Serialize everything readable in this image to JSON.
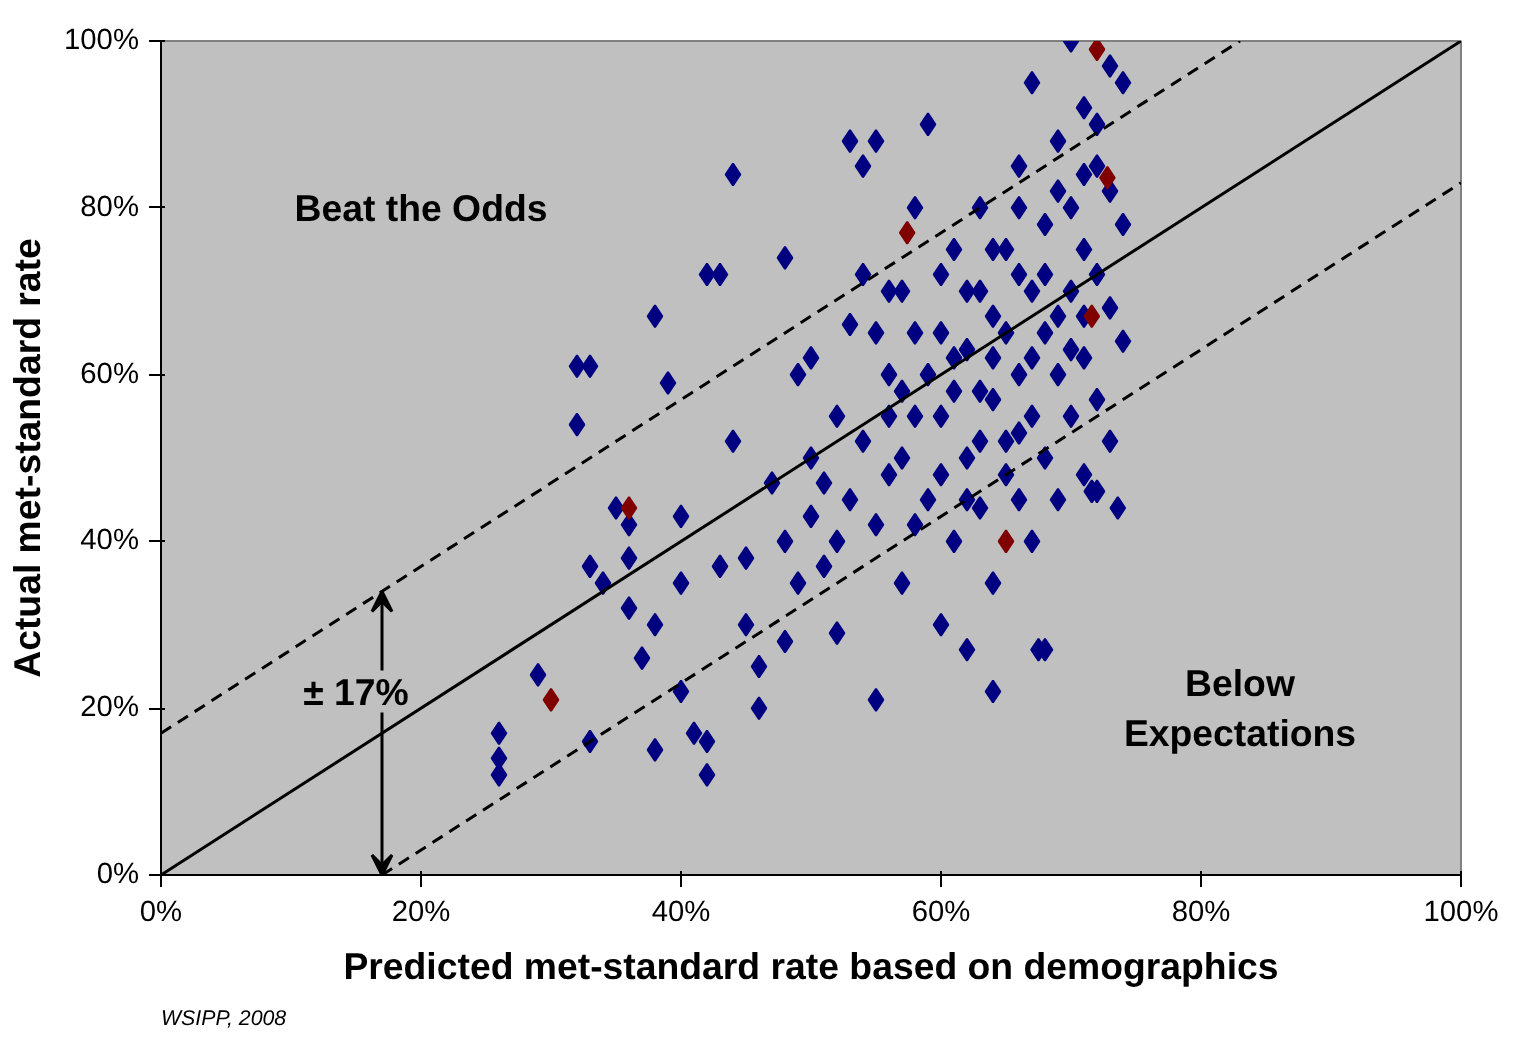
{
  "chart_data": {
    "type": "scatter",
    "xlabel": "Predicted met-standard rate based on demographics",
    "ylabel": "Actual met-standard rate",
    "annotations": [
      "Beat the Odds",
      "Below Expectations",
      "± 17%",
      "WSIPP, 2008"
    ],
    "xlim": [
      0,
      100
    ],
    "ylim": [
      0,
      100
    ],
    "xticks": [
      {
        "value": 0,
        "label": "0%"
      },
      {
        "value": 20,
        "label": "20%"
      },
      {
        "value": 40,
        "label": "40%"
      },
      {
        "value": 60,
        "label": "60%"
      },
      {
        "value": 80,
        "label": "80%"
      },
      {
        "value": 100,
        "label": "100%"
      }
    ],
    "yticks": [
      {
        "value": 0,
        "label": "0%"
      },
      {
        "value": 20,
        "label": "20%"
      },
      {
        "value": 40,
        "label": "40%"
      },
      {
        "value": 60,
        "label": "60%"
      },
      {
        "value": 80,
        "label": "80%"
      },
      {
        "value": 100,
        "label": "100%"
      }
    ],
    "grid": false,
    "marker": "diamond",
    "series": [
      {
        "color": "#000080",
        "x": [
          26,
          26,
          26,
          29,
          32,
          33,
          32,
          33,
          33,
          34,
          35,
          36,
          36,
          36,
          37,
          38,
          38,
          38,
          39,
          40,
          40,
          40,
          41,
          42,
          42,
          42,
          43,
          43,
          44,
          44,
          45,
          45,
          46,
          46,
          47,
          48,
          48,
          48,
          49,
          49,
          50,
          50,
          50,
          51,
          52,
          52,
          53,
          53,
          54,
          54,
          55,
          55,
          55,
          56,
          56,
          57,
          57,
          58,
          58,
          59,
          59,
          60,
          60,
          60,
          61,
          61,
          61,
          62,
          62,
          62,
          63,
          63,
          63,
          64,
          64,
          64,
          65,
          65,
          64,
          66,
          66,
          66,
          67,
          67,
          67,
          67,
          68,
          68,
          68,
          68,
          69,
          69,
          69,
          70,
          70,
          70,
          70,
          71,
          71,
          71,
          71,
          72,
          72,
          72,
          72,
          72,
          73,
          73,
          73,
          73,
          74,
          74,
          73.6,
          74,
          58,
          59,
          60,
          57,
          56,
          63,
          65,
          66,
          64,
          61,
          62,
          67,
          69,
          68,
          70,
          66,
          60,
          58,
          54,
          53,
          52,
          51,
          55,
          56,
          57,
          62,
          65,
          64,
          66,
          69,
          71,
          71,
          63,
          71.6,
          67.5
        ],
        "values": [
          17,
          14,
          12,
          24,
          61,
          61,
          54,
          37,
          16,
          35,
          44,
          42,
          38,
          32,
          26,
          30,
          15,
          67,
          59,
          43,
          35,
          22,
          17,
          16,
          12,
          72,
          72,
          37,
          84,
          52,
          38,
          30,
          25,
          20,
          47,
          74,
          40,
          28,
          35,
          60,
          50,
          43,
          62,
          37,
          55,
          29,
          88,
          66,
          85,
          72,
          88,
          42,
          21,
          60,
          48,
          70,
          35,
          55,
          80,
          90,
          45,
          65,
          30,
          55,
          75,
          40,
          62,
          50,
          70,
          27,
          80,
          58,
          44,
          67,
          35,
          62,
          75,
          52,
          22,
          85,
          60,
          45,
          70,
          55,
          95,
          40,
          78,
          65,
          50,
          27,
          88,
          60,
          45,
          100,
          80,
          70,
          55,
          92,
          75,
          62,
          48,
          90,
          85,
          72,
          57,
          46,
          97,
          82,
          68,
          52,
          95,
          78,
          44,
          64,
          65,
          60,
          72,
          50,
          55,
          70,
          65,
          72,
          57,
          58,
          63,
          62,
          67,
          72,
          63,
          53,
          48,
          42,
          52,
          45,
          40,
          47,
          65,
          70,
          58,
          45,
          48,
          75,
          80,
          82,
          84,
          67,
          52,
          46,
          27
        ]
      },
      {
        "color": "#800000",
        "x": [
          30,
          36,
          57.4,
          65,
          71.6,
          72.8,
          72
        ],
        "values": [
          21,
          44,
          77,
          40,
          67,
          83.6,
          99
        ]
      },
      {
        "type": "line",
        "color": "#000000",
        "line_style": "solid",
        "marker": "none",
        "x": [
          0,
          100
        ],
        "values": [
          0,
          100
        ]
      },
      {
        "type": "line",
        "color": "#000000",
        "line_style": "dashed",
        "marker": "none",
        "x": [
          0,
          83
        ],
        "values": [
          17,
          100
        ]
      },
      {
        "type": "line",
        "color": "#000000",
        "line_style": "dashed",
        "marker": "none",
        "x": [
          17,
          100
        ],
        "values": [
          0,
          83
        ]
      }
    ]
  }
}
